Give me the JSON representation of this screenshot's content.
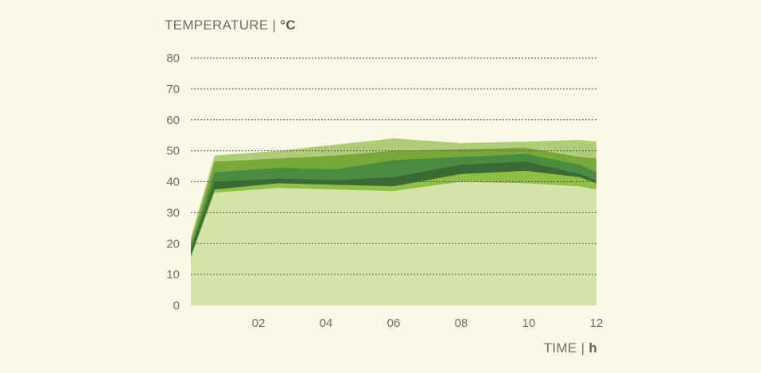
{
  "chart_data": {
    "type": "area",
    "ylabel": "TEMPERATURE",
    "ylabel_unit": "°C",
    "xlabel": "TIME",
    "xlabel_unit": "h",
    "ylim": [
      0,
      80
    ],
    "xlim": [
      0,
      12
    ],
    "yticks": [
      "0",
      "10",
      "20",
      "30",
      "40",
      "50",
      "60",
      "70",
      "80"
    ],
    "xticks": [
      "02",
      "04",
      "06",
      "08",
      "10",
      "12"
    ],
    "grid": true,
    "colors": [
      "#d4e3a6",
      "#8fbf47",
      "#3a6b35",
      "#4a8c3f",
      "#79a83a",
      "#b0cc78"
    ],
    "x": [
      0,
      0.7,
      2.6,
      4.3,
      6.0,
      8.0,
      9.9,
      11.5,
      12
    ],
    "series": [
      {
        "values": [
          15.5,
          36.5,
          38,
          37.5,
          37,
          40,
          39.5,
          38.5,
          37.5
        ]
      },
      {
        "values": [
          16,
          37.5,
          39.5,
          39,
          38.5,
          42.5,
          43.5,
          41.5,
          39.5
        ]
      },
      {
        "values": [
          18,
          40,
          41,
          40.5,
          41.5,
          45.5,
          46.5,
          42.5,
          40.5
        ]
      },
      {
        "values": [
          19,
          43,
          44.5,
          44,
          47,
          48,
          49,
          45.5,
          43
        ]
      },
      {
        "values": [
          20.5,
          46.5,
          47.5,
          48.5,
          50,
          50.5,
          51,
          48,
          47.5
        ]
      },
      {
        "values": [
          22,
          48.5,
          50,
          52,
          54,
          52.5,
          53,
          53.5,
          53
        ]
      }
    ]
  }
}
